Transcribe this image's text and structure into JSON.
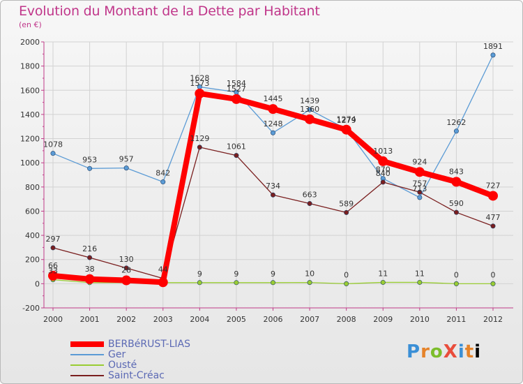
{
  "title": "Evolution du Montant de la Dette par Habitant",
  "unit_label": "(en €)",
  "brand": "ProXiti",
  "chart_data": {
    "type": "line",
    "title": "Evolution du Montant de la Dette par Habitant",
    "subtitle": "(en €)",
    "xlabel": "",
    "ylabel": "",
    "x": [
      "2000",
      "2001",
      "2002",
      "2003",
      "2004",
      "2005",
      "2006",
      "2007",
      "2008",
      "2009",
      "2010",
      "2011",
      "2012"
    ],
    "ylim": [
      -200,
      2000
    ],
    "yticks": [
      -200,
      0,
      200,
      400,
      600,
      800,
      1000,
      1200,
      1400,
      1600,
      1800,
      2000
    ],
    "grid": true,
    "legend": "bottom-left",
    "series": [
      {
        "name": "BERBéRUST-LIAS",
        "color": "#ff0000",
        "values": [
          66,
          38,
          28,
          12,
          1573,
          1527,
          1445,
          1360,
          1274,
          1013,
          924,
          843,
          727
        ],
        "labels": [
          "66",
          "38",
          "28",
          "",
          "1573",
          "1527",
          "1445",
          "1360",
          "1274",
          "1013",
          "924",
          "843",
          "727"
        ]
      },
      {
        "name": "Ger",
        "color": "#5b9bd5",
        "values": [
          1078,
          953,
          957,
          842,
          1628,
          1584,
          1248,
          1439,
          1279,
          870,
          713,
          1262,
          1891
        ],
        "labels": [
          "1078",
          "953",
          "957",
          "842",
          "1628",
          "1584",
          "1248",
          "1439",
          "1279",
          "870",
          "713",
          "1262",
          "1891"
        ]
      },
      {
        "name": "Ousté",
        "color": "#99cc33",
        "values": [
          33,
          9,
          9,
          9,
          9,
          9,
          9,
          10,
          0,
          11,
          11,
          0,
          0
        ],
        "labels": [
          "33",
          "",
          "",
          "",
          "9",
          "9",
          "9",
          "10",
          "0",
          "11",
          "11",
          "0",
          "0"
        ]
      },
      {
        "name": "Saint-Créac",
        "color": "#7a1f1f",
        "values": [
          297,
          216,
          130,
          44,
          1129,
          1061,
          734,
          663,
          589,
          840,
          757,
          590,
          477
        ],
        "labels": [
          "297",
          "216",
          "130",
          "44",
          "1129",
          "1061",
          "734",
          "663",
          "589",
          "840",
          "757",
          "590",
          "477"
        ]
      }
    ]
  }
}
